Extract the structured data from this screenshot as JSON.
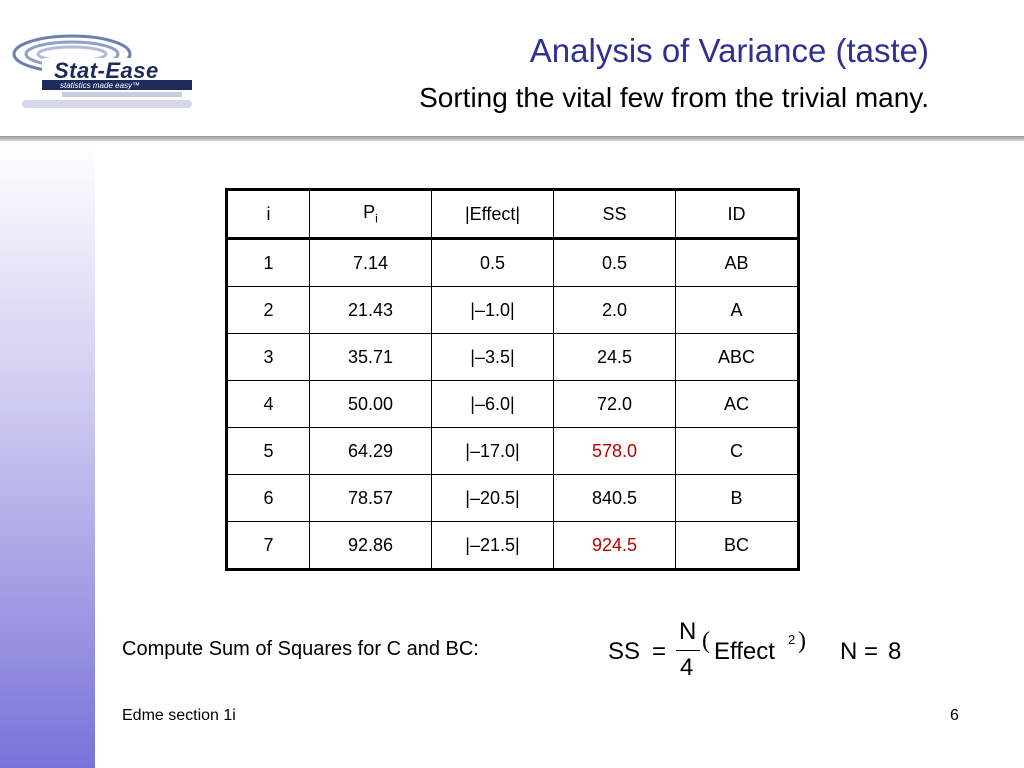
{
  "logo": {
    "name": "Stat-Ease",
    "tagline": "statistics made easy™"
  },
  "header": {
    "title": "Analysis of Variance (taste)",
    "subtitle": "Sorting the vital few from the trivial many."
  },
  "table": {
    "headers": [
      "i",
      "P",
      "|Effect|",
      "SS",
      "ID"
    ],
    "p_subscript": "i",
    "rows": [
      [
        "1",
        "7.14",
        "0.5",
        "0.5",
        "AB"
      ],
      [
        "2",
        "21.43",
        "|–1.0|",
        "2.0",
        "A"
      ],
      [
        "3",
        "35.71",
        "|–3.5|",
        "24.5",
        "ABC"
      ],
      [
        "4",
        "50.00",
        "|–6.0|",
        "72.0",
        "AC"
      ],
      [
        "5",
        "64.29",
        "|–17.0|",
        "578.0",
        "C"
      ],
      [
        "6",
        "78.57",
        "|–20.5|",
        "840.5",
        "B"
      ],
      [
        "7",
        "92.86",
        "|–21.5|",
        "924.5",
        "BC"
      ]
    ],
    "highlight_color": "#c00000"
  },
  "compute_text": "Compute Sum of Squares for C and BC:",
  "formula": {
    "ss": "SS",
    "equals": "=",
    "numerator": "N",
    "denominator": "4",
    "effect": "Effect",
    "exponent": "2",
    "n_label": "N",
    "n_equals": "=",
    "n_value": "8"
  },
  "footer": {
    "left": "Edme section 1i",
    "page_number": "6"
  }
}
